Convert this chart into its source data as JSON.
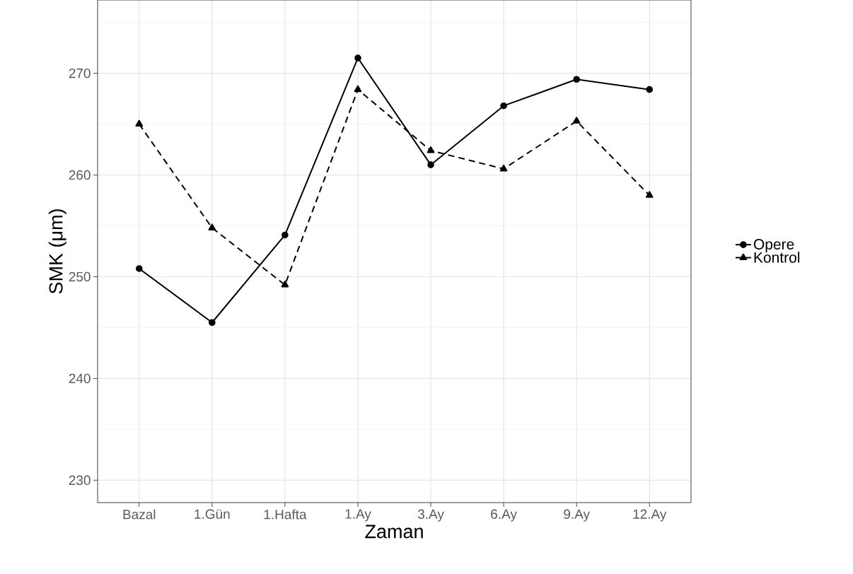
{
  "chart_data": {
    "type": "line",
    "xlabel": "Zaman",
    "ylabel": "SMK (μm)",
    "categories": [
      "Bazal",
      "1.Gün",
      "1.Hafta",
      "1.Ay",
      "3.Ay",
      "6.Ay",
      "9.Ay",
      "12.Ay"
    ],
    "series": [
      {
        "name": "Opere",
        "color": "#000000",
        "marker": "circle",
        "line_style": "solid",
        "values": [
          250.8,
          245.5,
          254.1,
          271.5,
          261.0,
          266.8,
          269.4,
          268.4
        ]
      },
      {
        "name": "Kontrol",
        "color": "#000000",
        "marker": "triangle",
        "line_style": "dashed",
        "values": [
          265.0,
          254.8,
          249.2,
          268.4,
          262.4,
          260.6,
          265.3,
          258.0
        ]
      }
    ],
    "ylim": [
      227.8,
      277.2
    ],
    "yticks": [
      230,
      240,
      250,
      260,
      270
    ],
    "grid": true,
    "legend": "right"
  }
}
